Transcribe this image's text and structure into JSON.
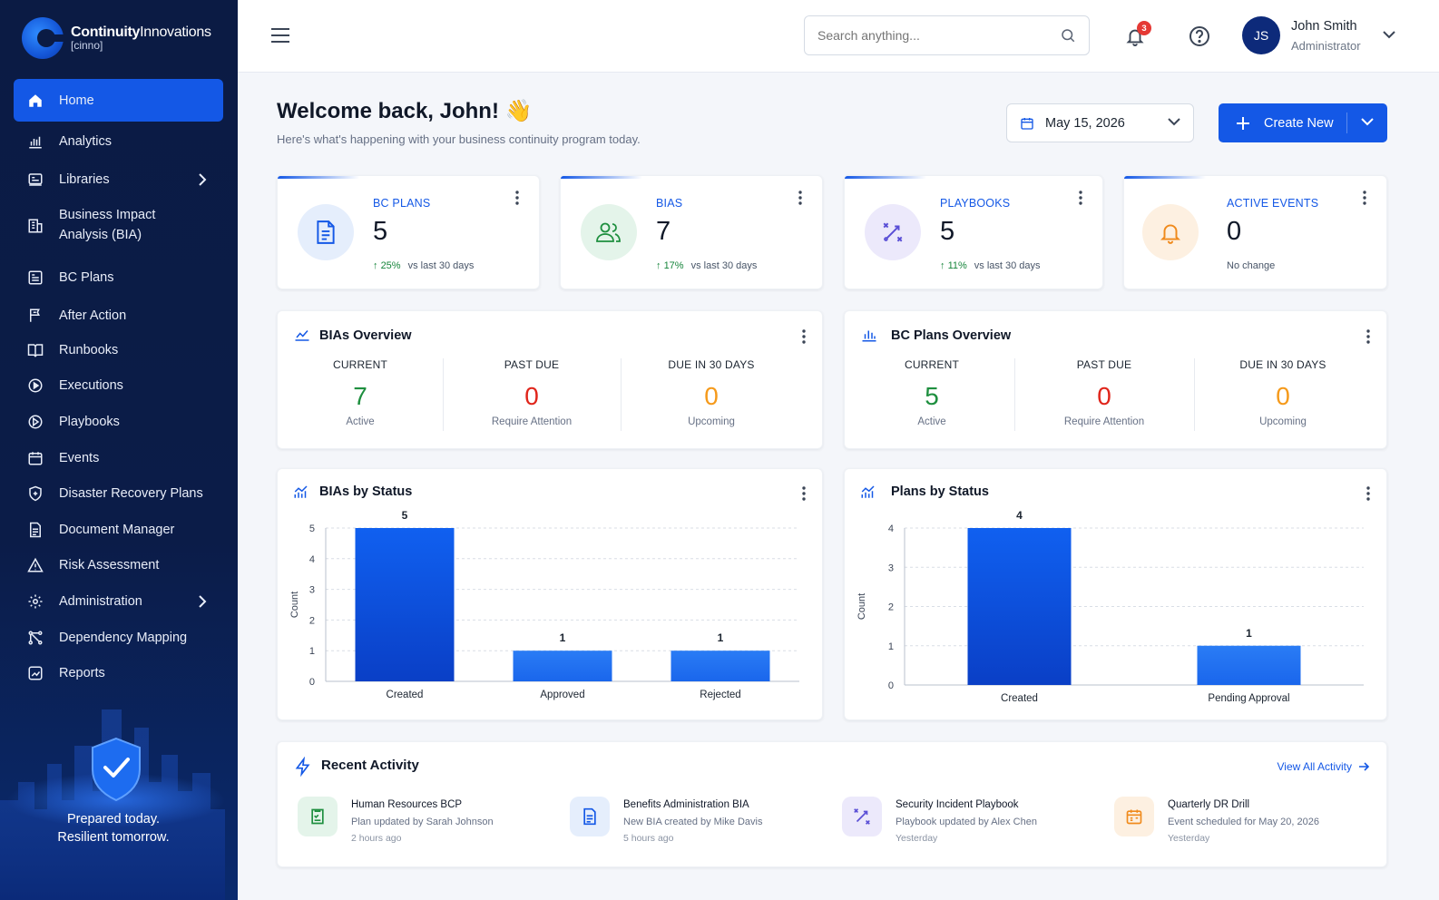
{
  "brand": {
    "name_bold": "Continuity",
    "name_rest": "Innovations",
    "sub": "[cinno]"
  },
  "sidebar": {
    "items": [
      {
        "label": "Home",
        "icon": "home-icon"
      },
      {
        "label": "Analytics",
        "icon": "analytics-icon"
      },
      {
        "label": "Libraries",
        "icon": "library-icon"
      },
      {
        "label": "Business Impact Analysis (BIA)",
        "icon": "building-icon"
      },
      {
        "label": "BC Plans",
        "icon": "plans-icon"
      },
      {
        "label": "After Action",
        "icon": "flag-icon"
      },
      {
        "label": "Runbooks",
        "icon": "book-icon"
      },
      {
        "label": "Executions",
        "icon": "play-circle-icon"
      },
      {
        "label": "Playbooks",
        "icon": "playbook-icon"
      },
      {
        "label": "Events",
        "icon": "calendar-icon"
      },
      {
        "label": "Disaster Recovery Plans",
        "icon": "shield-icon"
      },
      {
        "label": "Document Manager",
        "icon": "document-icon"
      },
      {
        "label": "Risk Assessment",
        "icon": "warning-icon"
      },
      {
        "label": "Administration",
        "icon": "gear-icon"
      },
      {
        "label": "Dependency Mapping",
        "icon": "network-icon"
      },
      {
        "label": "Reports",
        "icon": "report-icon"
      }
    ],
    "tagline1": "Prepared today.",
    "tagline2": "Resilient tomorrow."
  },
  "topbar": {
    "search_placeholder": "Search anything...",
    "notifications": "3",
    "user_initials": "JS",
    "user_name": "John Smith",
    "user_role": "Administrator"
  },
  "main": {
    "welcome": "Welcome back, John! 👋",
    "subtitle": "Here's what's happening with your business continuity program today.",
    "date": "May 15, 2026",
    "create_label": "Create New"
  },
  "kpis": [
    {
      "label": "BC PLANS",
      "value": "5",
      "trend": "25%",
      "trend_text": "vs last 30 days"
    },
    {
      "label": "BIAS",
      "value": "7",
      "trend": "17%",
      "trend_text": "vs last 30 days"
    },
    {
      "label": "PLAYBOOKS",
      "value": "5",
      "trend": "11%",
      "trend_text": "vs last 30 days"
    },
    {
      "label": "ACTIVE EVENTS",
      "value": "0",
      "trend": "",
      "trend_text": "No change"
    }
  ],
  "overviews": [
    {
      "title": "BIAs Overview",
      "cols": [
        {
          "head": "CURRENT",
          "value": "7",
          "label": "Active"
        },
        {
          "head": "PAST DUE",
          "value": "0",
          "label": "Require Attention"
        },
        {
          "head": "DUE IN 30 DAYS",
          "value": "0",
          "label": "Upcoming"
        }
      ]
    },
    {
      "title": "BC Plans Overview",
      "cols": [
        {
          "head": "CURRENT",
          "value": "5",
          "label": "Active"
        },
        {
          "head": "PAST DUE",
          "value": "0",
          "label": "Require Attention"
        },
        {
          "head": "DUE IN 30 DAYS",
          "value": "0",
          "label": "Upcoming"
        }
      ]
    }
  ],
  "chart_titles": [
    "BIAs by Status",
    "Plans by Status"
  ],
  "chart_data": [
    {
      "type": "bar",
      "title": "BIAs by Status",
      "ylabel": "Count",
      "categories": [
        "Created",
        "Approved",
        "Rejected"
      ],
      "values": [
        5,
        1,
        1
      ],
      "ylim": [
        0,
        5
      ],
      "yticks": [
        0,
        1,
        2,
        3,
        4,
        5
      ],
      "grid": true
    },
    {
      "type": "bar",
      "title": "Plans by Status",
      "ylabel": "Count",
      "categories": [
        "Created",
        "Pending Approval"
      ],
      "values": [
        4,
        1
      ],
      "ylim": [
        0,
        4
      ],
      "yticks": [
        0,
        1,
        2,
        3,
        4
      ],
      "grid": true
    }
  ],
  "activity": {
    "title": "Recent Activity",
    "view_all": "View All Activity",
    "items": [
      {
        "title": "Human Resources BCP",
        "desc": "Plan updated by Sarah Johnson",
        "time": "2 hours ago",
        "icon": "plan-doc-icon"
      },
      {
        "title": "Benefits Administration BIA",
        "desc": "New BIA created by Mike Davis",
        "time": "5 hours ago",
        "icon": "bia-doc-icon"
      },
      {
        "title": "Security Incident Playbook",
        "desc": "Playbook updated by Alex Chen",
        "time": "Yesterday",
        "icon": "playbook-icon"
      },
      {
        "title": "Quarterly DR Drill",
        "desc": "Event scheduled for May 20, 2026",
        "time": "Yesterday",
        "icon": "calendar-icon"
      }
    ]
  },
  "colors": {
    "accent": "#1458e6",
    "sidebar": "#0b1b44",
    "green": "#1e8f3f",
    "red": "#e0251b",
    "orange": "#f59a1b"
  }
}
